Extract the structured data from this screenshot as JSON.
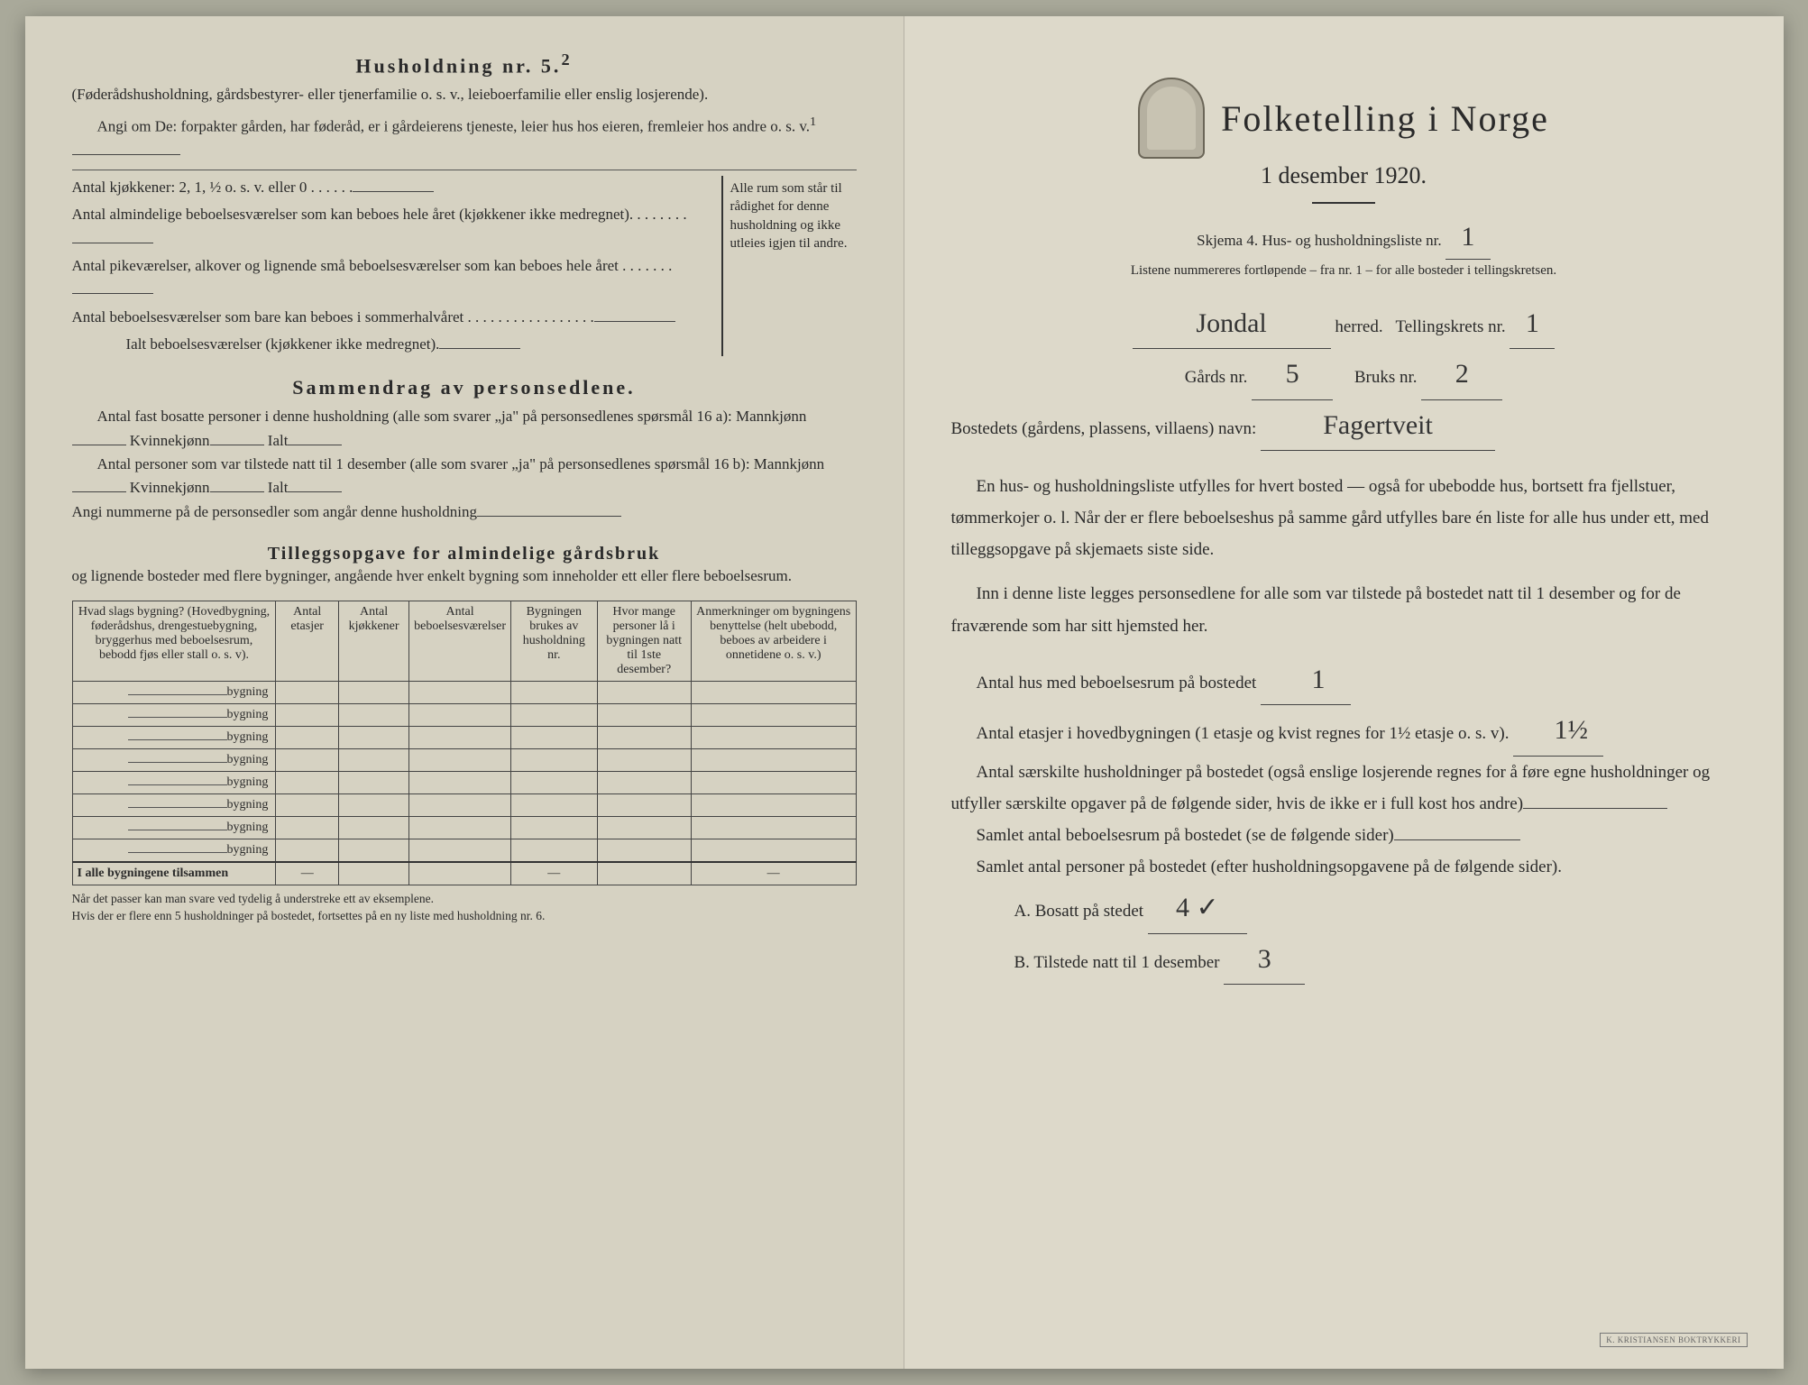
{
  "left": {
    "h5_title": "Husholdning nr. 5.",
    "h5_sup": "2",
    "h5_par": "(Føderådshusholdning, gårdsbestyrer- eller tjenerfamilie o. s. v., leieboerfamilie eller enslig losjerende).",
    "h5_angi": "Angi om De:  forpakter gården, har føderåd, er i gårdeierens tjeneste, leier hus hos eieren, fremleier hos andre o. s. v.",
    "h5_angi_sup": "1",
    "room_lines": [
      "Antal kjøkkener: 2, 1, ½ o. s. v. eller 0 . . . . . .",
      "Antal almindelige beboelsesværelser som kan beboes hele året (kjøkkener ikke medregnet). . . . . . . .",
      "Antal pikeværelser, alkover og lignende små beboelsesværelser som kan beboes hele året . . . . . . .",
      "Antal beboelsesværelser som bare kan beboes i sommerhalvåret . . . . . . . . . . . . . . . . .",
      "Ialt beboelsesværelser (kjøkkener ikke medregnet)."
    ],
    "brace_text": "Alle rum som står til rådighet for denne husholdning og ikke utleies igjen til andre.",
    "summ_title": "Sammendrag av personsedlene.",
    "summ_l1a": "Antal fast bosatte personer i denne husholdning (alle som svarer „ja\" på personsedlenes spørsmål 16 a): Mannkjønn",
    "summ_l1b": "Kvinnekjønn",
    "summ_l1c": "Ialt",
    "summ_l2a": "Antal personer som var tilstede natt til 1 desember (alle som svarer „ja\" på personsedlenes spørsmål 16 b): Mannkjønn",
    "summ_l2b": "Kvinnekjønn",
    "summ_l2c": "Ialt",
    "summ_l3": "Angi nummerne på de personsedler som angår denne husholdning",
    "tillegg_title": "Tilleggsopgave for almindelige gårdsbruk",
    "tillegg_sub": "og lignende bosteder med flere bygninger, angående hver enkelt bygning som inneholder ett eller flere beboelsesrum.",
    "table_headers": {
      "c1": "Hvad slags bygning?\n(Hovedbygning, føderådshus, drengestuebygning, bryggerhus med beboelsesrum, bebodd fjøs eller stall o. s. v).",
      "c2": "Antal etasjer",
      "c3": "Antal kjøkkener",
      "c4": "Antal beboelsesværelser",
      "c5": "Bygningen brukes av husholdning nr.",
      "c6": "Hvor mange personer lå i bygningen natt til 1ste desember?",
      "c7": "Anmerkninger om bygningens benyttelse (helt ubebodd, beboes av arbeidere i onnetidene o. s. v.)"
    },
    "bygning_label": "bygning",
    "row_count": 8,
    "total_row": "I alle bygningene tilsammen",
    "dash": "—",
    "footnote": "Når det passer kan man svare ved tydelig å understreke ett av eksemplene.\nHvis der er flere enn 5 husholdninger på bostedet, fortsettes på en ny liste med husholdning nr. 6."
  },
  "right": {
    "title": "Folketelling i Norge",
    "subtitle": "1 desember 1920.",
    "skjema": "Skjema 4.  Hus- og husholdningsliste nr.",
    "skjema_nr": "1",
    "listene": "Listene nummereres fortløpende – fra nr. 1 – for alle bosteder i tellingskretsen.",
    "herred_value": "Jondal",
    "herred_label": "herred.",
    "tellingskrets_label": "Tellingskrets nr.",
    "tellingskrets_nr": "1",
    "gards_label": "Gårds nr.",
    "gards_nr": "5",
    "bruks_label": "Bruks nr.",
    "bruks_nr": "2",
    "bosted_label": "Bostedets (gårdens, plassens, villaens) navn:",
    "bosted_value": "Fagertveit",
    "para1": "En hus- og husholdningsliste utfylles for hvert bosted — også for ubebodde hus, bortsett fra fjellstuer, tømmerkojer o. l.  Når der er flere beboelseshus på samme gård utfylles bare én liste for alle hus under ett, med tilleggsopgave på skjemaets siste side.",
    "para2": "Inn i denne liste legges personsedlene for alle som var tilstede på bostedet natt til 1 desember og for de fraværende som har sitt hjemsted her.",
    "antal_hus_label": "Antal hus med beboelsesrum på bostedet",
    "antal_hus_value": "1",
    "etasjer_label_a": "Antal etasjer i hovedbygningen (1 etasje og kvist regnes for 1½ etasje o. s. v).",
    "etasjer_value": "1½",
    "saerskilte": "Antal særskilte husholdninger på bostedet (også enslige losjerende regnes for å føre egne husholdninger og utfyller særskilte opgaver på de følgende sider, hvis de ikke er i full kost hos andre)",
    "samlet_beb": "Samlet antal beboelsesrum på bostedet (se de følgende sider)",
    "samlet_pers": "Samlet antal personer på bostedet (efter husholdningsopgavene på de følgende sider).",
    "a_label": "A.  Bosatt på stedet",
    "a_value": "4 ✓",
    "b_label": "B.  Tilstede natt til 1 desember",
    "b_value": "3",
    "stamp": "K. KRISTIANSEN BOKTRYKKERI"
  }
}
